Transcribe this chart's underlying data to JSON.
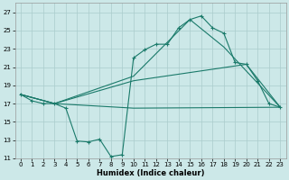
{
  "xlabel": "Humidex (Indice chaleur)",
  "xlim": [
    -0.5,
    23.5
  ],
  "ylim": [
    11,
    28
  ],
  "yticks": [
    11,
    13,
    15,
    17,
    19,
    21,
    23,
    25,
    27
  ],
  "xticks": [
    0,
    1,
    2,
    3,
    4,
    5,
    6,
    7,
    8,
    9,
    10,
    11,
    12,
    13,
    14,
    15,
    16,
    17,
    18,
    19,
    20,
    21,
    22,
    23
  ],
  "bg_color": "#cce8e8",
  "grid_color": "#aacccc",
  "line_color": "#1a7a6a",
  "main_line": {
    "x": [
      0,
      1,
      2,
      3,
      4,
      5,
      6,
      7,
      8,
      9,
      10,
      11,
      12,
      13,
      14,
      15,
      16,
      17,
      18,
      19,
      20,
      21,
      22,
      23
    ],
    "y": [
      18.0,
      17.3,
      17.0,
      17.0,
      16.5,
      12.9,
      12.8,
      13.1,
      11.2,
      11.4,
      22.0,
      22.9,
      23.5,
      23.5,
      25.3,
      26.2,
      26.6,
      25.3,
      24.7,
      21.5,
      21.3,
      19.5,
      17.0,
      16.6
    ]
  },
  "straight_lines": [
    {
      "x": [
        0,
        3,
        10,
        23
      ],
      "y": [
        18.0,
        17.0,
        16.5,
        16.6
      ]
    },
    {
      "x": [
        0,
        3,
        10,
        20,
        23
      ],
      "y": [
        18.0,
        17.0,
        19.5,
        21.3,
        16.6
      ]
    },
    {
      "x": [
        0,
        3,
        10,
        15,
        18,
        23
      ],
      "y": [
        18.0,
        17.0,
        20.0,
        26.2,
        23.2,
        16.6
      ]
    }
  ]
}
